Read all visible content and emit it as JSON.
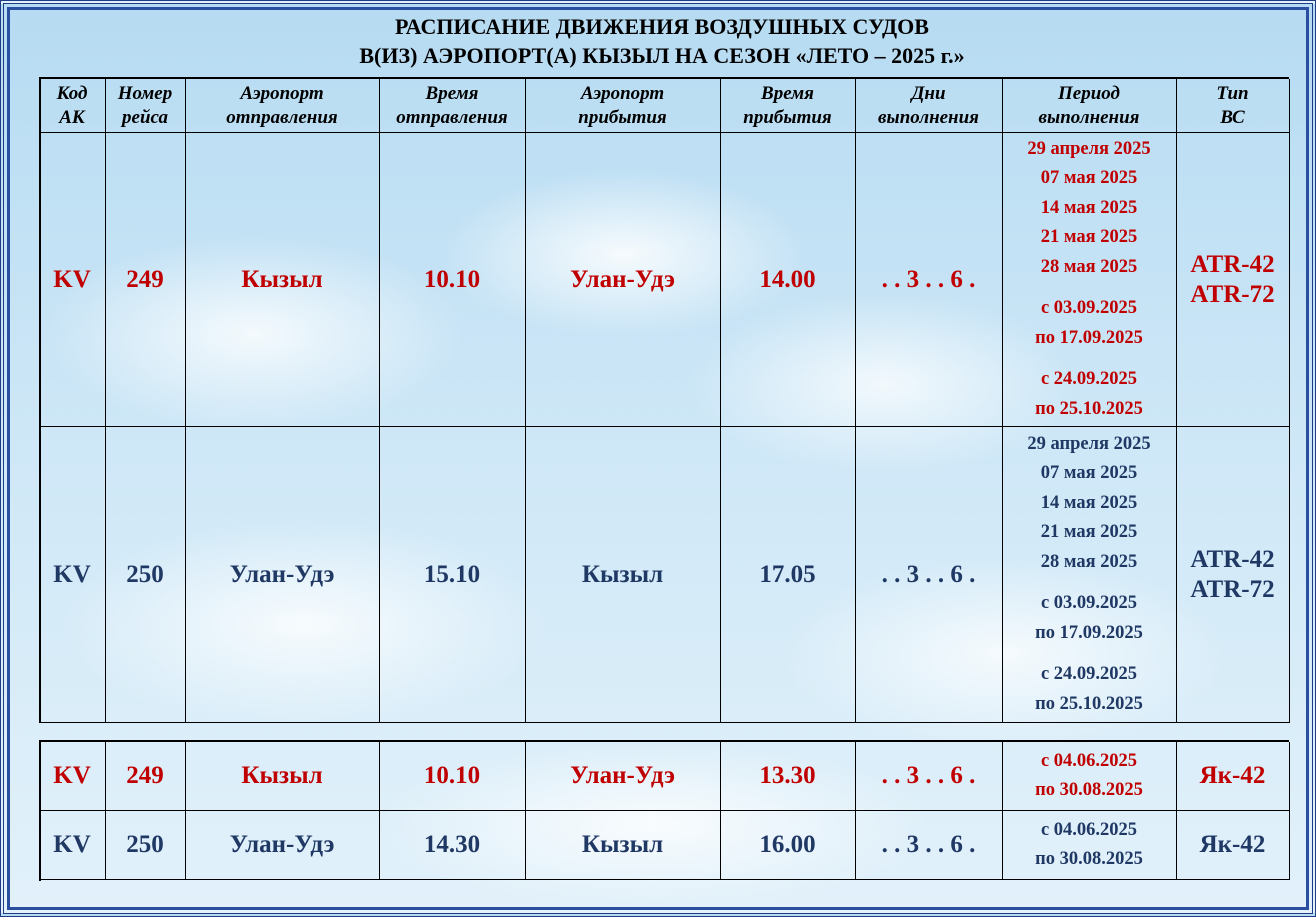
{
  "title": [
    "РАСПИСАНИЕ ДВИЖЕНИЯ ВОЗДУШНЫХ СУДОВ",
    "В(ИЗ) АЭРОПОРТ(А) КЫЗЫЛ НА СЕЗОН «ЛЕТО – 2025 г.»"
  ],
  "table": {
    "headers": [
      [
        "Код",
        "АК"
      ],
      [
        "Номер",
        "рейса"
      ],
      [
        "Аэропорт",
        "отправления"
      ],
      [
        "Время",
        "отправления"
      ],
      [
        "Аэропорт",
        "прибытия"
      ],
      [
        "Время",
        "прибытия"
      ],
      [
        "Дни",
        "выполнения"
      ],
      [
        "Период",
        "выполнения"
      ],
      [
        "Тип",
        "ВС"
      ]
    ],
    "rows": [
      {
        "color": "#c00000",
        "cells": [
          "KV",
          "249",
          "Кызыл",
          "10.10",
          "Улан-Удэ",
          "14.00",
          ". . 3 . . 6 .",
          [
            [
              "29 апреля 2025",
              "07 мая 2025",
              "14 мая 2025",
              "21 мая 2025",
              "28 мая 2025"
            ],
            [
              "с 03.09.2025",
              "по 17.09.2025"
            ],
            [
              "с 24.09.2025",
              "по 25.10.2025"
            ]
          ],
          [
            "ATR-42",
            "ATR-72"
          ]
        ]
      },
      {
        "color": "#1f3864",
        "cells": [
          "KV",
          "250",
          "Улан-Удэ",
          "15.10",
          "Кызыл",
          "17.05",
          ". . 3 . . 6 .",
          [
            [
              "29 апреля 2025",
              "07 мая 2025",
              "14 мая 2025",
              "21 мая 2025",
              "28 мая 2025"
            ],
            [
              "с 03.09.2025",
              "по 17.09.2025"
            ],
            [
              "с 24.09.2025",
              "по 25.10.2025"
            ]
          ],
          [
            "ATR-42",
            "ATR-72"
          ]
        ]
      }
    ]
  },
  "table2": {
    "rows": [
      {
        "color": "#c00000",
        "cells": [
          "KV",
          "249",
          "Кызыл",
          "10.10",
          "Улан-Удэ",
          "13.30",
          ". . 3 . . 6 .",
          [
            [
              "с 04.06.2025",
              "по 30.08.2025"
            ]
          ],
          [
            "Як-42"
          ]
        ]
      },
      {
        "color": "#1f3864",
        "cells": [
          "KV",
          "250",
          "Улан-Удэ",
          "14.30",
          "Кызыл",
          "16.00",
          ". . 3 . . 6 .",
          [
            [
              "с 04.06.2025",
              "по 30.08.2025"
            ]
          ],
          [
            "Як-42"
          ]
        ]
      }
    ]
  }
}
